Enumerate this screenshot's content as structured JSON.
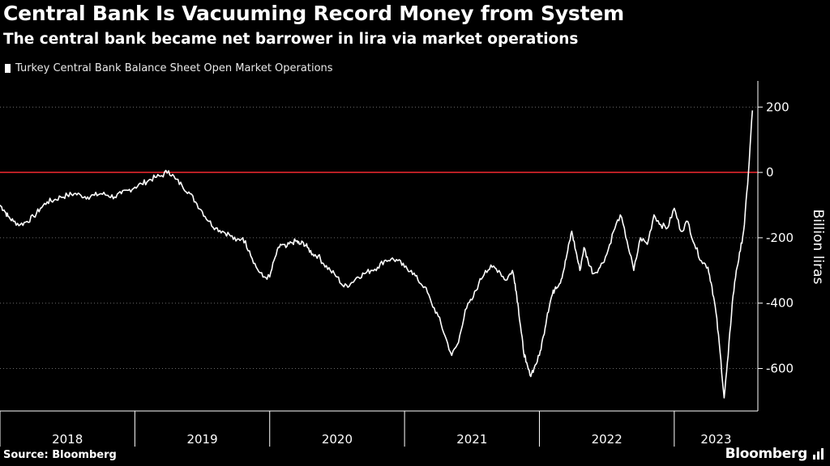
{
  "header": {
    "title": "Central Bank Is Vacuuming Record Money from System",
    "subtitle": "The central bank became net barrower in lira via market operations"
  },
  "footer": {
    "source": "Source: Bloomberg",
    "brand": "Bloomberg"
  },
  "colors": {
    "background": "#000000",
    "series": "#ffffff",
    "zero_line": "#e0262d",
    "grid": "#6b6b6b"
  },
  "chart_data": {
    "type": "line",
    "title": "Central Bank Is Vacuuming Record Money from System",
    "subtitle": "The central bank became net barrower in lira via market operations",
    "ylabel": "Billion liras",
    "ylim": [
      -730,
      280
    ],
    "yticks": [
      -600,
      -400,
      -200,
      0,
      200
    ],
    "ytick_labels": [
      "-600",
      "-400",
      "-200",
      "0",
      "200"
    ],
    "xlim": [
      2018.0,
      2023.62
    ],
    "x_year_boundaries": [
      2018.0,
      2019.0,
      2020.0,
      2021.0,
      2022.0,
      2023.0
    ],
    "xtick_labels": [
      "2018",
      "2019",
      "2020",
      "2021",
      "2022",
      "2023"
    ],
    "legend_position": "top-left",
    "grid": "horizontal dotted",
    "reference_line": {
      "y": 0,
      "color": "#e0262d"
    },
    "series": [
      {
        "name": "Turkey Central Bank Balance Sheet Open Market Operations",
        "x": [
          2018.0,
          2018.03,
          2018.06,
          2018.1,
          2018.15,
          2018.2,
          2018.25,
          2018.3,
          2018.35,
          2018.4,
          2018.45,
          2018.5,
          2018.55,
          2018.6,
          2018.65,
          2018.7,
          2018.75,
          2018.8,
          2018.85,
          2018.9,
          2018.95,
          2019.0,
          2019.05,
          2019.1,
          2019.15,
          2019.2,
          2019.25,
          2019.3,
          2019.35,
          2019.4,
          2019.45,
          2019.5,
          2019.55,
          2019.6,
          2019.65,
          2019.7,
          2019.75,
          2019.8,
          2019.85,
          2019.9,
          2019.95,
          2020.0,
          2020.04,
          2020.08,
          2020.12,
          2020.16,
          2020.2,
          2020.22,
          2020.25,
          2020.28,
          2020.32,
          2020.36,
          2020.4,
          2020.45,
          2020.5,
          2020.55,
          2020.6,
          2020.65,
          2020.7,
          2020.75,
          2020.8,
          2020.85,
          2020.9,
          2020.95,
          2021.0,
          2021.05,
          2021.1,
          2021.15,
          2021.2,
          2021.25,
          2021.3,
          2021.35,
          2021.4,
          2021.45,
          2021.5,
          2021.55,
          2021.6,
          2021.65,
          2021.7,
          2021.75,
          2021.8,
          2021.82,
          2021.84,
          2021.86,
          2021.88,
          2021.9,
          2021.93,
          2021.96,
          2022.0,
          2022.03,
          2022.06,
          2022.09,
          2022.12,
          2022.15,
          2022.18,
          2022.21,
          2022.24,
          2022.27,
          2022.3,
          2022.33,
          2022.36,
          2022.4,
          2022.45,
          2022.5,
          2022.55,
          2022.6,
          2022.65,
          2022.7,
          2022.75,
          2022.8,
          2022.85,
          2022.9,
          2022.95,
          2023.0,
          2023.05,
          2023.1,
          2023.15,
          2023.2,
          2023.25,
          2023.28,
          2023.31,
          2023.34,
          2023.37,
          2023.4,
          2023.43,
          2023.46,
          2023.49,
          2023.52,
          2023.55,
          2023.58
        ],
        "y": [
          -100,
          -115,
          -135,
          -150,
          -160,
          -150,
          -135,
          -110,
          -90,
          -85,
          -75,
          -70,
          -65,
          -70,
          -75,
          -70,
          -65,
          -70,
          -75,
          -65,
          -55,
          -45,
          -35,
          -25,
          -15,
          -10,
          5,
          -20,
          -40,
          -60,
          -90,
          -120,
          -150,
          -170,
          -180,
          -190,
          -210,
          -200,
          -240,
          -290,
          -320,
          -320,
          -260,
          -220,
          -230,
          -215,
          -210,
          -220,
          -215,
          -230,
          -250,
          -255,
          -280,
          -300,
          -320,
          -350,
          -340,
          -320,
          -310,
          -300,
          -290,
          -270,
          -265,
          -270,
          -290,
          -300,
          -330,
          -350,
          -400,
          -440,
          -500,
          -560,
          -520,
          -420,
          -390,
          -340,
          -300,
          -290,
          -300,
          -330,
          -300,
          -340,
          -400,
          -470,
          -540,
          -580,
          -620,
          -600,
          -560,
          -500,
          -430,
          -380,
          -350,
          -340,
          -300,
          -240,
          -180,
          -240,
          -300,
          -230,
          -270,
          -310,
          -290,
          -250,
          -180,
          -130,
          -210,
          -300,
          -200,
          -220,
          -130,
          -160,
          -170,
          -110,
          -180,
          -150,
          -220,
          -270,
          -290,
          -350,
          -430,
          -550,
          -690,
          -560,
          -400,
          -300,
          -240,
          -160,
          0,
          190
        ]
      }
    ]
  }
}
